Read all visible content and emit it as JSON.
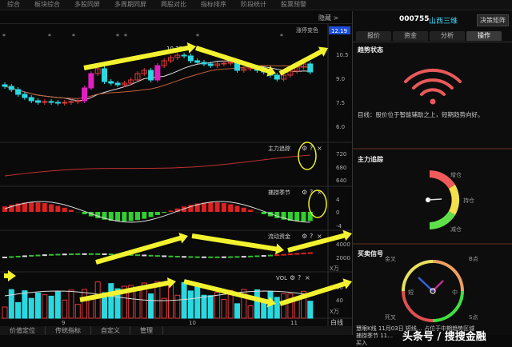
{
  "menu": [
    "综合",
    "板块综合",
    "多股同屏",
    "多周期同屏",
    "两股对比",
    "指标排序",
    "阶段统计",
    "股票预警"
  ],
  "header": {
    "hide_label": "隐藏 >",
    "stock_code": "000755",
    "stock_name": "山西三维",
    "matrix_button": "决策矩阵"
  },
  "tabs": [
    "报价",
    "资金",
    "分析",
    "操作"
  ],
  "active_tab": "操作",
  "main_chart": {
    "signal_label": "涨停变色",
    "current_price": "12.19",
    "high_label": "10.75",
    "price_ticks": [
      "10.5",
      "9.0",
      "7.5",
      "6.0"
    ],
    "closes": [
      8.5,
      8.3,
      8.0,
      7.8,
      7.6,
      7.5,
      7.55,
      7.5,
      7.45,
      7.5,
      7.55,
      7.6,
      8.4,
      9.3,
      9.6,
      8.8,
      8.7,
      8.6,
      8.7,
      8.9,
      9.3,
      9.5,
      8.9,
      9.8,
      10.1,
      10.3,
      10.45,
      10.4,
      10.1,
      10.0,
      9.9,
      9.8,
      9.9,
      9.95,
      10.0,
      9.5,
      9.6,
      9.7,
      9.5,
      9.4,
      9.2,
      8.95,
      9.2,
      9.45,
      9.7,
      9.9,
      9.4
    ],
    "star_label": "*"
  },
  "indicators": [
    {
      "name": "主力追踪",
      "ticks": [
        "720",
        "680",
        "640"
      ]
    },
    {
      "name": "捕捞季节",
      "ticks": [
        "4",
        "0",
        "-4"
      ]
    },
    {
      "name": "流动资金",
      "ticks": [
        "4000",
        "2000"
      ]
    },
    {
      "name": "VOL",
      "ticks": [
        "X万",
        "80",
        "40",
        "X万"
      ]
    }
  ],
  "x_axis": [
    "9",
    "10",
    "11"
  ],
  "line_label": "白线",
  "bottom_tabs": [
    "价值定位",
    "传统指标",
    "自定义",
    "管理"
  ],
  "side": {
    "trend_title": "趋势状态",
    "trend_text": "目线：股价位于智能辅助之上，短期趋势向好。",
    "main_force_title": "主力追踪",
    "gauge_labels": [
      "增仓",
      "持仓",
      "减仓"
    ],
    "signal_title": "买卖信号",
    "clock_labels": [
      "金叉",
      "B点",
      "死叉",
      "S点",
      "短",
      "中"
    ],
    "signal_text": "慧眼K线 11月03日 短线… 占位于中期趋势区域",
    "signal_text2": "捕捞季节 11…",
    "signal_text3": "买入",
    "watermark": "头条号 / 搜搜金融"
  },
  "colors": {
    "up": "#e0383a",
    "down": "#29d9e0",
    "arrow": "#f2f230",
    "wifi": "#e85a5a",
    "gauge": [
      "#ef5b5b",
      "#f4e04a",
      "#5fe04a"
    ]
  }
}
